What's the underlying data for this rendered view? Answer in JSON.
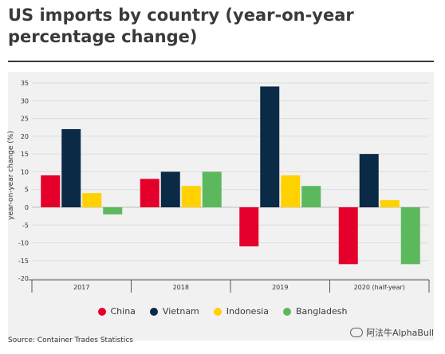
{
  "chart_data": {
    "type": "bar",
    "title": "US imports by country (year-on-year percentage change)",
    "ylabel": "year-on-year change (%)",
    "xlabel": "",
    "categories": [
      "2017",
      "2018",
      "2019",
      "2020 (half-year)"
    ],
    "ylim": [
      -20,
      35
    ],
    "yticks": [
      35,
      30,
      25,
      20,
      15,
      10,
      5,
      0,
      -5,
      -10,
      -15,
      -20
    ],
    "grid": true,
    "legend_position": "bottom",
    "series": [
      {
        "name": "China",
        "color": "#e4002b",
        "values": [
          9,
          8,
          -11,
          -16
        ]
      },
      {
        "name": "Vietnam",
        "color": "#0b2a45",
        "values": [
          22,
          10,
          34,
          15
        ]
      },
      {
        "name": "Indonesia",
        "color": "#ffd100",
        "values": [
          4,
          6,
          9,
          2
        ]
      },
      {
        "name": "Bangladesh",
        "color": "#5cb85c",
        "values": [
          -2,
          10,
          6,
          -16
        ]
      }
    ]
  },
  "source": "Source: Container Trades Statistics",
  "watermark": "阿法牛AlphaBull",
  "watermark_icon": "wechat-icon"
}
